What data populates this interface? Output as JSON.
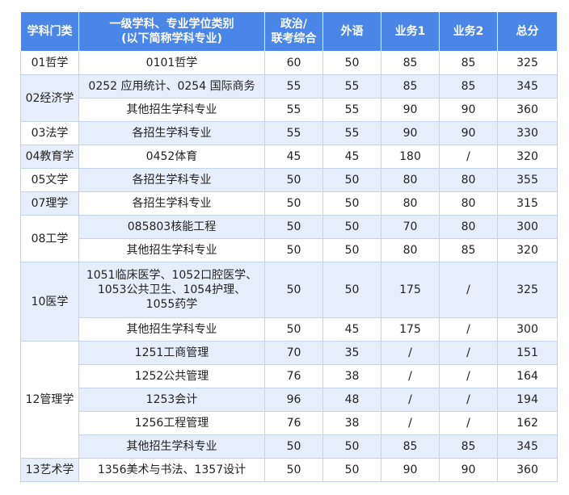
{
  "headers": [
    "学科门类",
    "一级学科、专业学位类别\n(以下简称学科专业)",
    "政治/\n联考综合",
    "外语",
    "业务1",
    "业务2",
    "总分"
  ],
  "groups": [
    {
      "category": "01哲学",
      "rows": [
        [
          "0101哲学",
          "60",
          "50",
          "85",
          "85",
          "325"
        ]
      ]
    },
    {
      "category": "02经济学",
      "rows": [
        [
          "0252 应用统计、0254 国际商务",
          "55",
          "55",
          "85",
          "85",
          "345"
        ],
        [
          "其他招生学科专业",
          "55",
          "55",
          "90",
          "90",
          "360"
        ]
      ]
    },
    {
      "category": "03法学",
      "rows": [
        [
          "各招生学科专业",
          "55",
          "55",
          "90",
          "90",
          "330"
        ]
      ]
    },
    {
      "category": "04教育学",
      "rows": [
        [
          "0452体育",
          "45",
          "45",
          "180",
          "/",
          "320"
        ]
      ]
    },
    {
      "category": "05文学",
      "rows": [
        [
          "各招生学科专业",
          "50",
          "50",
          "80",
          "80",
          "355"
        ]
      ]
    },
    {
      "category": "07理学",
      "rows": [
        [
          "各招生学科专业",
          "50",
          "50",
          "80",
          "80",
          "315"
        ]
      ]
    },
    {
      "category": "08工学",
      "rows": [
        [
          "085803核能工程",
          "50",
          "50",
          "70",
          "80",
          "300"
        ],
        [
          "其他招生学科专业",
          "50",
          "50",
          "80",
          "85",
          "320"
        ]
      ]
    },
    {
      "category": "10医学",
      "rows": [
        [
          "1051临床医学、1052口腔医学、\n1053公共卫生、1054护理、\n1055药学",
          "50",
          "50",
          "175",
          "/",
          "325"
        ],
        [
          "其他招生学科专业",
          "50",
          "45",
          "175",
          "/",
          "300"
        ]
      ]
    },
    {
      "category": "12管理学",
      "rows": [
        [
          "1251工商管理",
          "70",
          "35",
          "/",
          "/",
          "151"
        ],
        [
          "1252公共管理",
          "76",
          "38",
          "/",
          "/",
          "164"
        ],
        [
          "1253会计",
          "96",
          "48",
          "/",
          "/",
          "194"
        ],
        [
          "1256工程管理",
          "76",
          "38",
          "/",
          "/",
          "162"
        ],
        [
          "其他招生学科专业",
          "50",
          "50",
          "85",
          "85",
          "345"
        ]
      ]
    },
    {
      "category": "13艺术学",
      "rows": [
        [
          "1356美术与书法、1357设计",
          "50",
          "50",
          "90",
          "90",
          "360"
        ]
      ]
    }
  ],
  "colors": {
    "header_bg": "#4a86e8",
    "stripe": "#e7eefb",
    "border": "#c3d4ef"
  }
}
